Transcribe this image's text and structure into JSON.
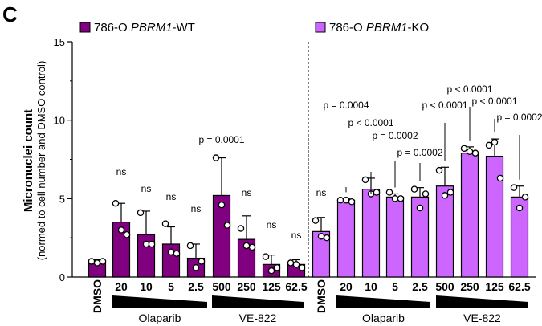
{
  "panel_label": "C",
  "chart_data": {
    "type": "bar",
    "ylabel": "Micronuclei count",
    "ylabel_sub": "(normed to cell number and DMSO control)",
    "ylim": [
      0,
      15
    ],
    "yticks": [
      0,
      5,
      10,
      15
    ],
    "legend": [
      {
        "name_prefix": "786-O ",
        "name_italic": "PBRM1",
        "name_suffix": "-WT",
        "color": "#800080"
      },
      {
        "name_prefix": "786-O ",
        "name_italic": "PBRM1",
        "name_suffix": "-KO",
        "color": "#cc66ff"
      }
    ],
    "groups": [
      {
        "label": "Olaparib"
      },
      {
        "label": "VE-822"
      },
      {
        "label": "Olaparib"
      },
      {
        "label": "VE-822"
      }
    ],
    "series": [
      {
        "color": "#800080",
        "categories": [
          "DMSO",
          "20",
          "10",
          "5",
          "2.5",
          "500",
          "250",
          "125",
          "62.5"
        ],
        "values": [
          1.0,
          3.5,
          2.7,
          2.1,
          1.2,
          5.2,
          2.4,
          0.8,
          0.8
        ],
        "errors": [
          0.1,
          1.2,
          1.5,
          1.1,
          0.9,
          2.4,
          1.5,
          0.6,
          0.3
        ],
        "points": [
          [
            1.0,
            0.9,
            1.0
          ],
          [
            4.7,
            3.0,
            2.7
          ],
          [
            4.1,
            2.1,
            2.1
          ],
          [
            3.4,
            1.6,
            1.5
          ],
          [
            2.0,
            0.6,
            1.0
          ],
          [
            7.6,
            4.6,
            3.3
          ],
          [
            3.1,
            2.0,
            1.9
          ],
          [
            1.3,
            0.4,
            0.6
          ],
          [
            0.9,
            0.8,
            0.6
          ]
        ],
        "annotations": [
          "",
          "ns",
          "ns",
          "ns",
          "ns",
          "p = 0.0001",
          "ns",
          "ns",
          "ns"
        ]
      },
      {
        "color": "#cc66ff",
        "categories": [
          "DMSO",
          "20",
          "10",
          "5",
          "2.5",
          "500",
          "250",
          "125",
          "62.5"
        ],
        "values": [
          2.9,
          4.9,
          5.6,
          5.1,
          5.1,
          5.8,
          7.9,
          7.7,
          5.1
        ],
        "errors": [
          0.9,
          0.1,
          0.7,
          0.2,
          0.6,
          1.2,
          0.4,
          1.1,
          0.7
        ],
        "points": [
          [
            3.6,
            2.6,
            2.5
          ],
          [
            4.9,
            4.9,
            4.8
          ],
          [
            6.2,
            5.3,
            5.4
          ],
          [
            5.4,
            5.0,
            5.0
          ],
          [
            5.6,
            4.4,
            5.3
          ],
          [
            6.8,
            5.2,
            5.4
          ],
          [
            8.2,
            8.0,
            7.9
          ],
          [
            8.4,
            8.6,
            6.3
          ],
          [
            5.7,
            4.4,
            5.1
          ]
        ],
        "annotations": [
          "ns",
          "p = 0.0004",
          "p < 0.0001",
          "p = 0.0002",
          "p = 0.0002",
          "p < 0.0001",
          "p < 0.0001",
          "p < 0.0001",
          "p = 0.0002"
        ]
      }
    ]
  }
}
